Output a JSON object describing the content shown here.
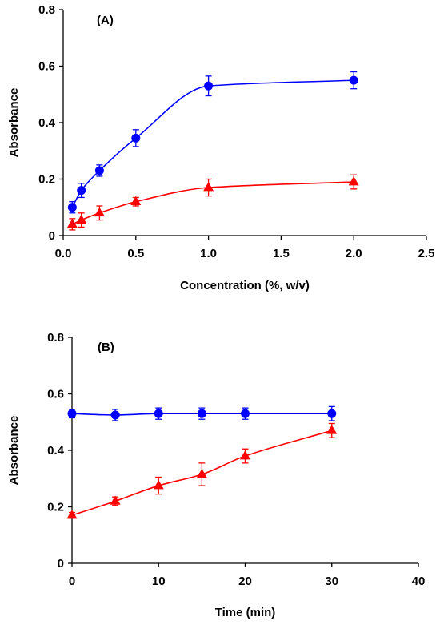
{
  "chart_data": [
    {
      "type": "line",
      "panel_label": "(A)",
      "xlabel": "Concentration (%, w/v)",
      "ylabel": "Absorbance",
      "xlim": [
        0,
        2.5
      ],
      "ylim": [
        0,
        0.8
      ],
      "xticks": [
        "0.0",
        "0.5",
        "1.0",
        "1.5",
        "2.0",
        "2.5"
      ],
      "yticks": [
        "0",
        "0.2",
        "0.4",
        "0.6",
        "0.8"
      ],
      "grid": false,
      "legend": "none",
      "series": [
        {
          "marker": "circle",
          "color": "#0000ff",
          "x": [
            0.0625,
            0.125,
            0.25,
            0.5,
            1.0,
            2.0
          ],
          "y": [
            0.1,
            0.16,
            0.23,
            0.345,
            0.53,
            0.55
          ],
          "error": [
            0.02,
            0.025,
            0.02,
            0.03,
            0.035,
            0.03
          ]
        },
        {
          "marker": "triangle",
          "color": "#ff0000",
          "x": [
            0.0625,
            0.125,
            0.25,
            0.5,
            1.0,
            2.0
          ],
          "y": [
            0.04,
            0.055,
            0.08,
            0.12,
            0.17,
            0.19
          ],
          "error": [
            0.02,
            0.025,
            0.025,
            0.015,
            0.03,
            0.025
          ]
        }
      ]
    },
    {
      "type": "line",
      "panel_label": "(B)",
      "xlabel": "Time (min)",
      "ylabel": "Absorbance",
      "xlim": [
        0,
        40
      ],
      "ylim": [
        0,
        0.8
      ],
      "xticks": [
        "0",
        "10",
        "20",
        "30",
        "40"
      ],
      "yticks": [
        "0",
        "0.2",
        "0.4",
        "0.6",
        "0.8"
      ],
      "grid": false,
      "legend": "none",
      "series": [
        {
          "marker": "circle",
          "color": "#0000ff",
          "x": [
            0,
            5,
            10,
            15,
            20,
            30
          ],
          "y": [
            0.53,
            0.525,
            0.53,
            0.53,
            0.53,
            0.53
          ],
          "error": [
            0.015,
            0.02,
            0.02,
            0.02,
            0.02,
            0.025
          ]
        },
        {
          "marker": "triangle",
          "color": "#ff0000",
          "x": [
            0,
            5,
            10,
            15,
            20,
            30
          ],
          "y": [
            0.17,
            0.22,
            0.275,
            0.315,
            0.38,
            0.47
          ],
          "error": [
            0.01,
            0.015,
            0.03,
            0.04,
            0.025,
            0.025
          ]
        }
      ]
    }
  ]
}
